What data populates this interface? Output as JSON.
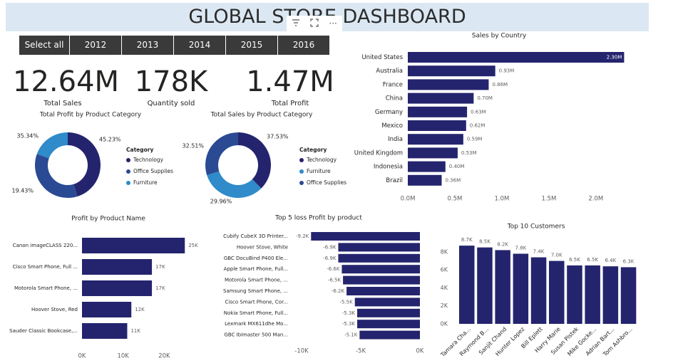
{
  "header": {
    "title": "GLOBAL STORE DASHBOARD",
    "toolbar": {
      "filter_icon": "filter-icon",
      "focus_icon": "expand-icon",
      "more_icon": "more-options-icon",
      "more_label": "···"
    }
  },
  "slicer": {
    "items": [
      "Select all",
      "2012",
      "2013",
      "2014",
      "2015",
      "2016"
    ]
  },
  "kpis": [
    {
      "value": "12.64M",
      "label": "Total Sales"
    },
    {
      "value": "178K",
      "label": "Quantity sold"
    },
    {
      "value": "1.47M",
      "label": "Total Profit"
    }
  ],
  "colors": {
    "navy": "#24246e",
    "blue_mid": "#2a4a94",
    "blue_light": "#2f8bc9",
    "axis_text": "#605e5c",
    "banner": "#dbe8f3"
  },
  "chart_data": [
    {
      "id": "profit-by-category",
      "type": "pie",
      "title": "Total Profit by Product Category",
      "legend_title": "Category",
      "legend_position": "right",
      "slices": [
        {
          "label": "Technology",
          "value": 45.23,
          "display": "45.23%",
          "color": "#24246e"
        },
        {
          "label": "Office Supplies",
          "value": 35.34,
          "display": "35.34%",
          "color": "#2a4a94"
        },
        {
          "label": "Furniture",
          "value": 19.43,
          "display": "19.43%",
          "color": "#2f8bc9"
        }
      ]
    },
    {
      "id": "sales-by-category",
      "type": "pie",
      "title": "Total Sales by Product Category",
      "legend_title": "Category",
      "legend_position": "right",
      "slices": [
        {
          "label": "Technology",
          "value": 37.53,
          "display": "37.53%",
          "color": "#24246e"
        },
        {
          "label": "Furniture",
          "value": 32.51,
          "display": "32.51%",
          "color": "#2f8bc9"
        },
        {
          "label": "Office Supplies",
          "value": 29.96,
          "display": "29.96%",
          "color": "#2a4a94"
        }
      ]
    },
    {
      "id": "sales-by-country",
      "type": "bar",
      "orientation": "horizontal",
      "title": "Sales by Country",
      "categories": [
        "United States",
        "Australia",
        "France",
        "China",
        "Germany",
        "Mexico",
        "India",
        "United Kingdom",
        "Indonesia",
        "Brazil"
      ],
      "values": [
        2.3,
        0.93,
        0.86,
        0.7,
        0.63,
        0.62,
        0.59,
        0.53,
        0.4,
        0.36
      ],
      "labels": [
        "2.30M",
        "0.93M",
        "0.86M",
        "0.70M",
        "0.63M",
        "0.62M",
        "0.59M",
        "0.53M",
        "0.40M",
        "0.36M"
      ],
      "xticks": [
        0,
        0.5,
        1.0,
        1.5,
        2.0
      ],
      "xtick_labels": [
        "0.0M",
        "0.5M",
        "1.0M",
        "1.5M",
        "2.0M"
      ],
      "xlim": [
        0,
        2.35
      ]
    },
    {
      "id": "profit-by-product",
      "type": "bar",
      "orientation": "horizontal",
      "title": "Profit by Product Name",
      "categories": [
        "Canon imageCLASS 220...",
        "Cisco Smart Phone, Full ...",
        "Motorola Smart Phone, ...",
        "Hoover Stove, Red",
        "Sauder Classic Bookcase,..."
      ],
      "values": [
        25,
        17,
        17,
        12,
        11
      ],
      "labels": [
        "25K",
        "17K",
        "17K",
        "12K",
        "11K"
      ],
      "xticks": [
        0,
        10,
        20
      ],
      "xtick_labels": [
        "0K",
        "10K",
        "20K"
      ],
      "xlim": [
        0,
        26
      ]
    },
    {
      "id": "top5-loss",
      "type": "bar",
      "orientation": "horizontal",
      "title": "Top 5 loss Profit by product",
      "categories": [
        "Cubify CubeX 3D Printer...",
        "Hoover Stove, White",
        "GBC DocuBind P400 Ele...",
        "Apple Smart Phone, Full...",
        "Motorola Smart Phone, ...",
        "Samsung Smart Phone, ...",
        "Cisco Smart Phone, Cor...",
        "Nokia Smart Phone, Full...",
        "Lexmark MX611dhe Mo...",
        "GBC Ibimaster 500 Man..."
      ],
      "values": [
        -9.2,
        -6.9,
        -6.9,
        -6.6,
        -6.5,
        -6.2,
        -5.5,
        -5.3,
        -5.3,
        -5.1
      ],
      "labels": [
        "-9.2K",
        "-6.9K",
        "-6.9K",
        "-6.6K",
        "-6.5K",
        "-6.2K",
        "-5.5K",
        "-5.3K",
        "-5.3K",
        "-5.1K"
      ],
      "xticks": [
        -10,
        -5,
        0
      ],
      "xtick_labels": [
        "-10K",
        "-5K",
        "0K"
      ],
      "xlim": [
        -10,
        0
      ]
    },
    {
      "id": "top10-customers",
      "type": "bar",
      "orientation": "vertical",
      "title": "Top 10 Customers",
      "categories": [
        "Tamara Cha...",
        "Raymond B...",
        "Sanjit Chand",
        "Hunter Lopez",
        "Bill Eplett",
        "Harry Marie",
        "Susan Pistek",
        "Mike Gocke...",
        "Adrian Bart...",
        "Tom Ashbro..."
      ],
      "values": [
        8.7,
        8.5,
        8.2,
        7.8,
        7.4,
        7.0,
        6.5,
        6.5,
        6.4,
        6.3
      ],
      "labels": [
        "8.7K",
        "8.5K",
        "8.2K",
        "7.8K",
        "7.4K",
        "7.0K",
        "6.5K",
        "6.5K",
        "6.4K",
        "6.3K"
      ],
      "yticks": [
        0,
        2,
        4,
        6,
        8
      ],
      "ytick_labels": [
        "0K",
        "2K",
        "4K",
        "6K",
        "8K"
      ],
      "ylim": [
        0,
        9.5
      ]
    }
  ]
}
